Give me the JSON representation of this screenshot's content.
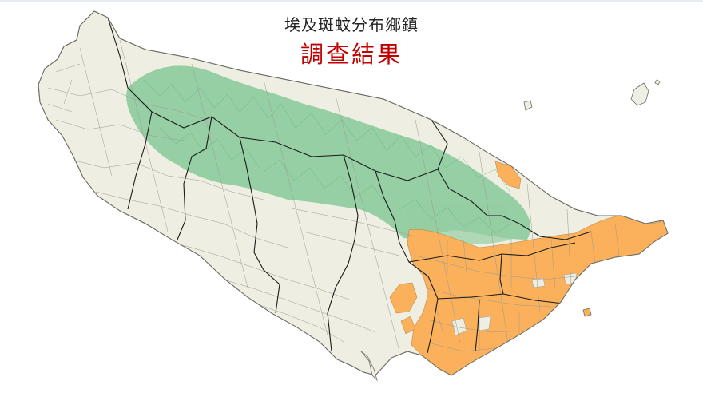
{
  "map": {
    "title_line1": "埃及斑蚊分布鄉鎮",
    "title_line2": "調查結果",
    "colors": {
      "land": "#efeee2",
      "township_border": "#9a9a90",
      "county_border": "#1a1a1a",
      "mountain_relief": "#86c999",
      "mosquito_present": "#fbb15c",
      "coastline": "#6e6e66",
      "title_text": "#222222",
      "subtitle_text": "#c00000",
      "background": "#ffffff"
    },
    "layers": [
      "land-area",
      "mountain-relief",
      "mosquito-distribution-area",
      "township-boundaries",
      "county-boundaries",
      "offshore-islands"
    ]
  }
}
